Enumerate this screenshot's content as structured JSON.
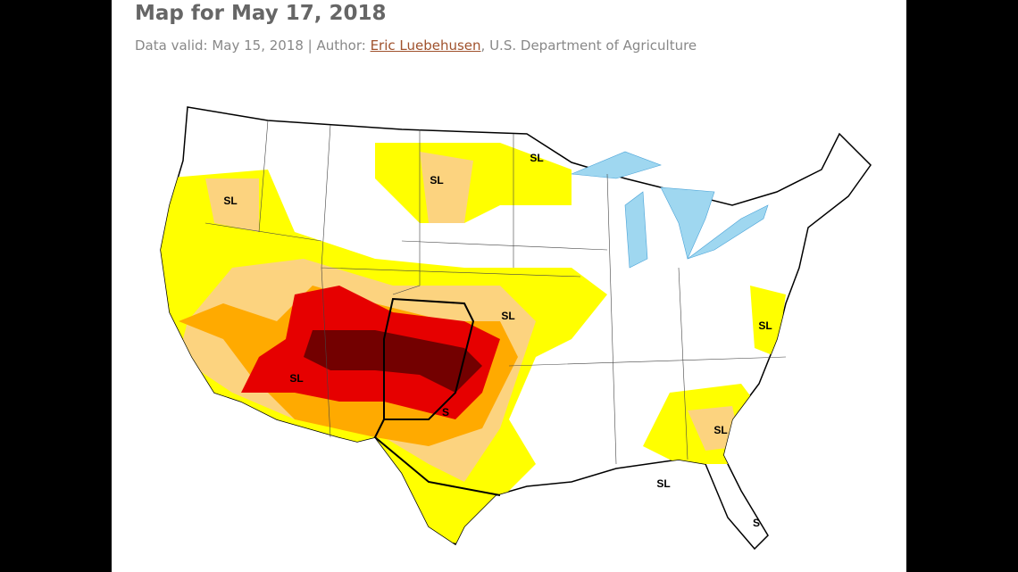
{
  "header": {
    "title": "Map for May 17, 2018",
    "subtitle_prefix": "Data valid: May 15, 2018 | Author: ",
    "author": "Eric Luebehusen",
    "subtitle_suffix": ", U.S. Department of Agriculture"
  },
  "map": {
    "labels": [
      "SL",
      "SL",
      "SL",
      "SL",
      "SL",
      "S",
      "SL",
      "SL",
      "SL",
      "S"
    ]
  }
}
